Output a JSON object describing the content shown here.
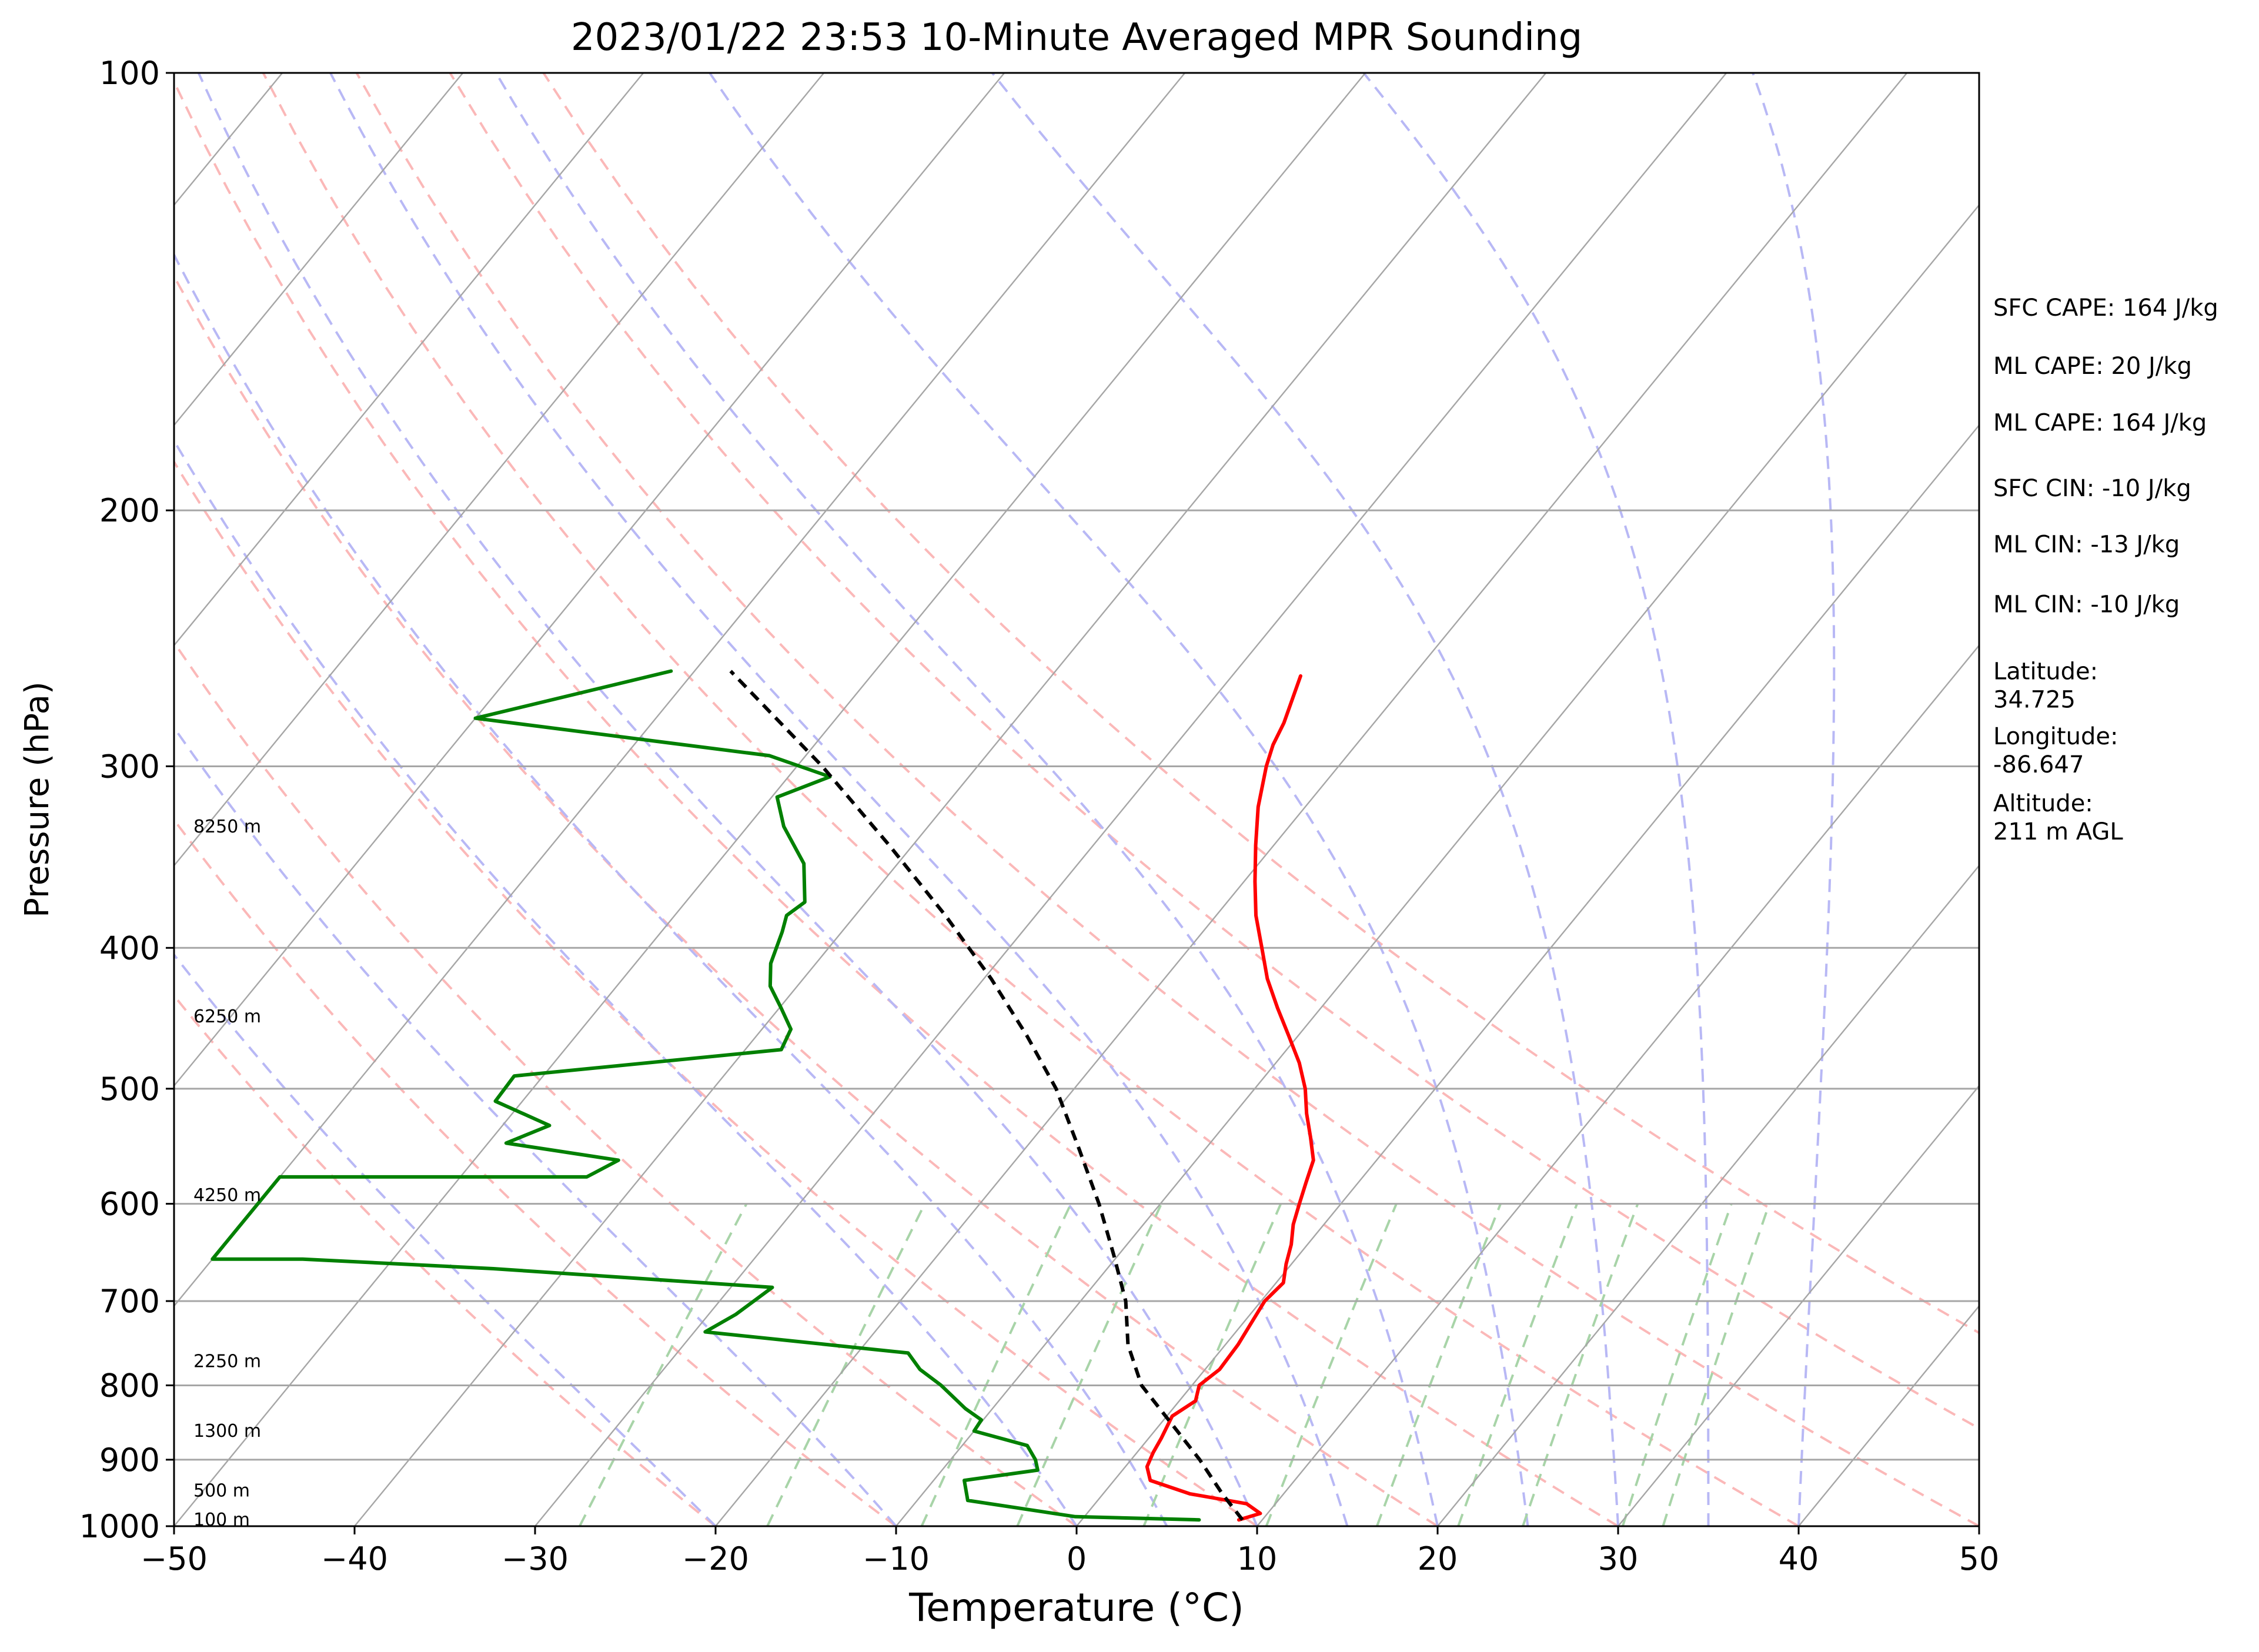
{
  "chart_data": {
    "type": "line",
    "subtype": "skew-t log-p sounding",
    "title": "2023/01/22 23:53 10-Minute Averaged MPR Sounding",
    "xlabel": "Temperature (°C)",
    "ylabel": "Pressure (hPa)",
    "xlim": [
      -50,
      50
    ],
    "ylim": [
      1000,
      100
    ],
    "y_scale": "log",
    "grid": true,
    "x_ticks": [
      -50,
      -40,
      -30,
      -20,
      -10,
      0,
      10,
      20,
      30,
      40,
      50
    ],
    "x_tick_labels": [
      "−50",
      "−40",
      "−30",
      "−20",
      "−10",
      "0",
      "10",
      "20",
      "30",
      "40",
      "50"
    ],
    "y_ticks": [
      100,
      200,
      300,
      400,
      500,
      600,
      700,
      800,
      900,
      1000
    ],
    "y_tick_labels": [
      "100",
      "200",
      "300",
      "400",
      "500",
      "600",
      "700",
      "800",
      "900",
      "1000"
    ],
    "skew_deg_per_decade": 66,
    "background": {
      "isotherms": [
        -160,
        -150,
        -140,
        -130,
        -120,
        -110,
        -100,
        -90,
        -80,
        -70,
        -60,
        -50,
        -40,
        -30,
        -20,
        -10,
        0,
        10,
        20,
        30,
        40,
        50
      ],
      "dry_adiabats_theta_C": [
        -20,
        -10,
        0,
        10,
        20,
        30,
        40,
        50,
        60,
        70
      ],
      "moist_adiabats_T1000_C": [
        -20,
        -10,
        0,
        5,
        10,
        15,
        20,
        25,
        30,
        35,
        40
      ],
      "mixing_ratios_gkg": [
        0.4,
        1,
        2,
        3,
        5,
        8,
        12,
        16,
        20,
        28,
        32
      ],
      "colors": {
        "isotherm": "#a6a6a6",
        "dry_adiabat": "#fbb8b8",
        "moist_adiabat": "#b8b8f5",
        "mixing_ratio": "#a8d4a8"
      }
    },
    "series": [
      {
        "key": "temperature",
        "color": "#ff0000",
        "points": [
          [
            990,
            8.7
          ],
          [
            980,
            9.6
          ],
          [
            965,
            8.4
          ],
          [
            950,
            4.8
          ],
          [
            930,
            2.0
          ],
          [
            910,
            1.2
          ],
          [
            890,
            0.9
          ],
          [
            870,
            0.7
          ],
          [
            840,
            0.3
          ],
          [
            820,
            0.9
          ],
          [
            800,
            0.4
          ],
          [
            780,
            0.8
          ],
          [
            750,
            0.7
          ],
          [
            720,
            0.4
          ],
          [
            700,
            0.2
          ],
          [
            680,
            0.4
          ],
          [
            660,
            -0.3
          ],
          [
            640,
            -0.9
          ],
          [
            620,
            -1.7
          ],
          [
            600,
            -2.3
          ],
          [
            580,
            -2.9
          ],
          [
            560,
            -3.5
          ],
          [
            540,
            -4.7
          ],
          [
            520,
            -6.0
          ],
          [
            500,
            -7.2
          ],
          [
            480,
            -8.7
          ],
          [
            460,
            -10.5
          ],
          [
            440,
            -12.4
          ],
          [
            420,
            -14.3
          ],
          [
            400,
            -16.0
          ],
          [
            380,
            -17.8
          ],
          [
            360,
            -19.4
          ],
          [
            340,
            -21.0
          ],
          [
            320,
            -22.6
          ],
          [
            300,
            -24.0
          ],
          [
            290,
            -24.6
          ],
          [
            280,
            -25.0
          ],
          [
            260,
            -26.2
          ]
        ]
      },
      {
        "key": "dewpoint",
        "color": "#008000",
        "points": [
          [
            990,
            6.5
          ],
          [
            985,
            -0.5
          ],
          [
            960,
            -7.2
          ],
          [
            930,
            -8.3
          ],
          [
            915,
            -4.7
          ],
          [
            900,
            -5.3
          ],
          [
            880,
            -6.4
          ],
          [
            860,
            -10.0
          ],
          [
            845,
            -10.1
          ],
          [
            830,
            -11.5
          ],
          [
            800,
            -13.9
          ],
          [
            780,
            -15.8
          ],
          [
            760,
            -17.2
          ],
          [
            735,
            -29.4
          ],
          [
            715,
            -28.5
          ],
          [
            685,
            -27.7
          ],
          [
            665,
            -44.0
          ],
          [
            655,
            -55.0
          ],
          [
            655,
            -60.0
          ],
          [
            575,
            -60.0
          ],
          [
            575,
            -43.0
          ],
          [
            560,
            -42.0
          ],
          [
            545,
            -49.0
          ],
          [
            530,
            -47.4
          ],
          [
            510,
            -51.5
          ],
          [
            490,
            -51.6
          ],
          [
            470,
            -38.0
          ],
          [
            455,
            -38.4
          ],
          [
            440,
            -39.9
          ],
          [
            425,
            -41.5
          ],
          [
            410,
            -42.5
          ],
          [
            390,
            -43.3
          ],
          [
            380,
            -43.8
          ],
          [
            372,
            -43.4
          ],
          [
            350,
            -45.2
          ],
          [
            330,
            -48.0
          ],
          [
            315,
            -49.7
          ],
          [
            305,
            -47.7
          ],
          [
            295,
            -52.0
          ],
          [
            278,
            -70.0
          ],
          [
            258,
            -61.3
          ]
        ]
      },
      {
        "key": "parcel",
        "color": "#000000",
        "dashed": true,
        "points": [
          [
            990,
            8.9
          ],
          [
            950,
            6.6
          ],
          [
            900,
            3.8
          ],
          [
            850,
            0.6
          ],
          [
            800,
            -2.8
          ],
          [
            750,
            -5.4
          ],
          [
            700,
            -7.5
          ],
          [
            650,
            -10.3
          ],
          [
            600,
            -13.4
          ],
          [
            550,
            -17.0
          ],
          [
            500,
            -21.0
          ],
          [
            460,
            -25.0
          ],
          [
            420,
            -29.6
          ],
          [
            380,
            -35.0
          ],
          [
            340,
            -41.3
          ],
          [
            300,
            -48.6
          ],
          [
            258,
            -58.0
          ]
        ]
      }
    ],
    "height_labels": [
      {
        "label": "100 m",
        "pressure": 990
      },
      {
        "label": "500 m",
        "pressure": 945
      },
      {
        "label": "1300 m",
        "pressure": 860
      },
      {
        "label": "2250 m",
        "pressure": 770
      },
      {
        "label": "4250 m",
        "pressure": 592
      },
      {
        "label": "6250 m",
        "pressure": 446
      },
      {
        "label": "8250 m",
        "pressure": 330
      }
    ],
    "annotations": [
      {
        "lines": [
          "SFC CAPE: 164 J/kg"
        ],
        "pressure": 145
      },
      {
        "lines": [
          "ML CAPE: 20 J/kg"
        ],
        "pressure": 159
      },
      {
        "lines": [
          "ML CAPE: 164 J/kg"
        ],
        "pressure": 174
      },
      {
        "lines": [
          "SFC CIN: -10 J/kg"
        ],
        "pressure": 193
      },
      {
        "lines": [
          "ML CIN: -13 J/kg"
        ],
        "pressure": 211
      },
      {
        "lines": [
          "ML CIN: -10 J/kg"
        ],
        "pressure": 232
      },
      {
        "lines": [
          "Latitude:",
          "34.725"
        ],
        "pressure": 258
      },
      {
        "lines": [
          "Longitude:",
          "-86.647"
        ],
        "pressure": 286
      },
      {
        "lines": [
          "Altitude:",
          "211 m AGL"
        ],
        "pressure": 318
      }
    ]
  }
}
